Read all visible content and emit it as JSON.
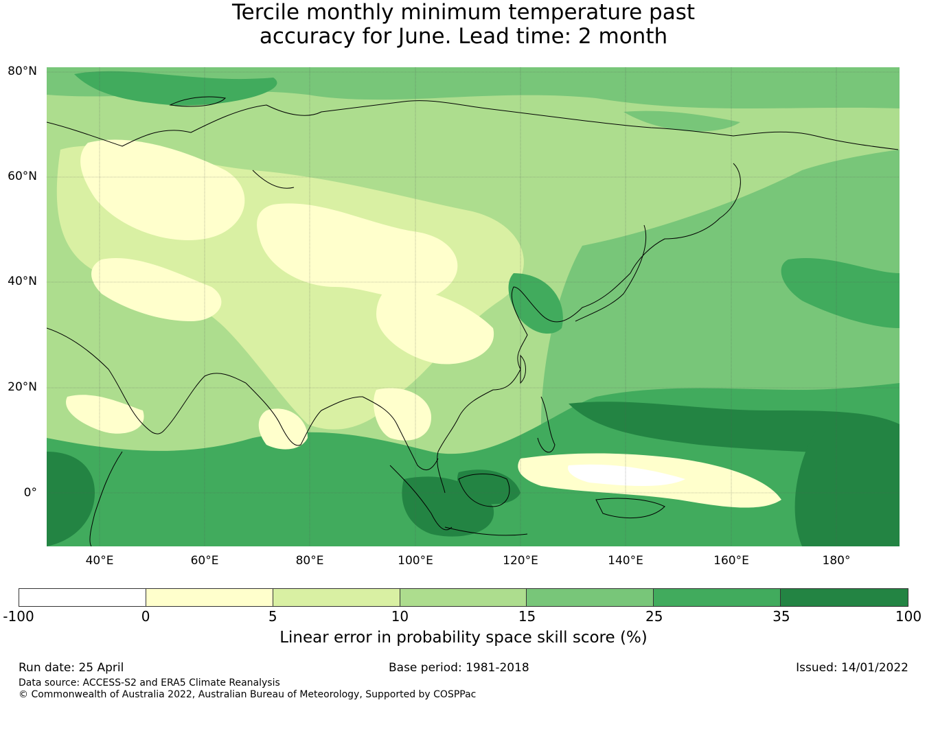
{
  "title": {
    "line1": "Tercile monthly minimum temperature past",
    "line2": "accuracy for June. Lead time: 2 month"
  },
  "map": {
    "extent": {
      "lon_min": 30,
      "lon_max": 192,
      "lat_min": -10,
      "lat_max": 81
    },
    "lat_ticks": [
      {
        "lat": 80,
        "label": "80°N"
      },
      {
        "lat": 60,
        "label": "60°N"
      },
      {
        "lat": 40,
        "label": "40°N"
      },
      {
        "lat": 20,
        "label": "20°N"
      },
      {
        "lat": 0,
        "label": "0°"
      }
    ],
    "lon_ticks": [
      {
        "lon": 40,
        "label": "40°E"
      },
      {
        "lon": 60,
        "label": "60°E"
      },
      {
        "lon": 80,
        "label": "80°E"
      },
      {
        "lon": 100,
        "label": "100°E"
      },
      {
        "lon": 120,
        "label": "120°E"
      },
      {
        "lon": 140,
        "label": "140°E"
      },
      {
        "lon": 160,
        "label": "160°E"
      },
      {
        "lon": 180,
        "label": "180°"
      }
    ],
    "land_color": "#d9f0a3",
    "coast_color": "#000000"
  },
  "colorbar": {
    "ticks": [
      "-100",
      "0",
      "5",
      "10",
      "15",
      "25",
      "35",
      "100"
    ],
    "colors": [
      "#ffffff",
      "#ffffcc",
      "#d9f0a3",
      "#addd8e",
      "#78c679",
      "#41ab5d",
      "#238443"
    ],
    "label": "Linear error in probability space skill score (%)"
  },
  "footer": {
    "run_date": "Run date: 25 April",
    "base_period": "Base period: 1981-2018",
    "issued": "Issued: 14/01/2022",
    "data_source": "Data source: ACCESS-S2 and ERA5 Climate Reanalysis",
    "copyright": "© Commonwealth of Australia 2022, Australian Bureau of Meteorology, Supported by COSPPac"
  }
}
